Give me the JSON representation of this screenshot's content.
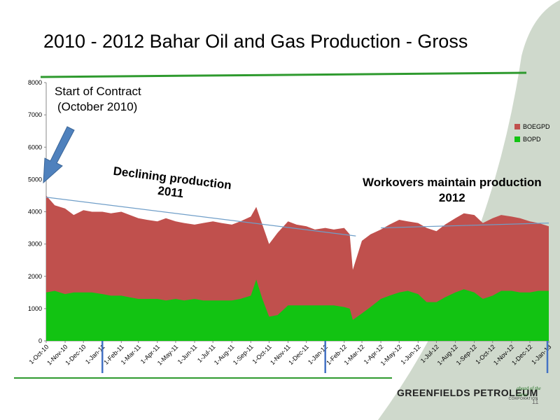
{
  "title": "2010 - 2012 Bahar Oil and Gas Production - Gross",
  "page_number": "11",
  "logo": {
    "name": "GREENFIELDS PETROLEUM",
    "sub": "CORPORATION",
    "tagline": "ahead of the curve"
  },
  "annotations": {
    "contract_line1": "Start of Contract",
    "contract_line2": "(October 2010)",
    "declining_line1": "Declining production",
    "declining_line2": "2011",
    "workovers_line1": "Workovers  maintain production",
    "workovers_line2": "2012"
  },
  "colors": {
    "boegpd": "#c0504d",
    "bopd": "#12c312",
    "trend": "#6f9ec8",
    "arrow": "#4f81bd",
    "marker": "#4472c4",
    "curve": "#cfd9cc",
    "rule": "#2e9a2e"
  },
  "chart_data": {
    "type": "area",
    "ylim": [
      0,
      8000
    ],
    "yticks": [
      0,
      1000,
      2000,
      3000,
      4000,
      5000,
      6000,
      7000,
      8000
    ],
    "x_ticklabels": [
      "1-Oct-10",
      "1-Nov-10",
      "1-Dec-10",
      "1-Jan-11",
      "1-Feb-11",
      "1-Mar-11",
      "1-Apr-11",
      "1-May-11",
      "1-Jun-11",
      "1-Jul-11",
      "1-Aug-11",
      "1-Sep-11",
      "1-Oct-11",
      "1-Nov-11",
      "1-Dec-11",
      "1-Jan-12",
      "1-Feb-12",
      "1-Mar-12",
      "1-Apr-12",
      "1-May-12",
      "1-Jun-12",
      "1-Jul-12",
      "1-Aug-12",
      "1-Sep-12",
      "1-Oct-12",
      "1-Nov-12",
      "1-Dec-12",
      "1-Jan-13"
    ],
    "legend": [
      {
        "name": "BOEGPD",
        "color": "#c0504d"
      },
      {
        "name": "BOPD",
        "color": "#12c312"
      }
    ],
    "legend_position": "right",
    "series": [
      {
        "name": "BOEGPD",
        "x": [
          "1-Oct-10",
          "15-Oct-10",
          "1-Nov-10",
          "15-Nov-10",
          "1-Dec-10",
          "15-Dec-10",
          "1-Jan-11",
          "15-Jan-11",
          "1-Feb-11",
          "15-Feb-11",
          "1-Mar-11",
          "15-Mar-11",
          "1-Apr-11",
          "15-Apr-11",
          "1-May-11",
          "15-May-11",
          "1-Jun-11",
          "15-Jun-11",
          "1-Jul-11",
          "15-Jul-11",
          "1-Aug-11",
          "15-Aug-11",
          "1-Sep-11",
          "10-Sep-11",
          "20-Sep-11",
          "1-Oct-11",
          "15-Oct-11",
          "1-Nov-11",
          "15-Nov-11",
          "1-Dec-11",
          "15-Dec-11",
          "1-Jan-12",
          "15-Jan-12",
          "1-Feb-12",
          "10-Feb-12",
          "15-Feb-12",
          "1-Mar-12",
          "15-Mar-12",
          "1-Apr-12",
          "15-Apr-12",
          "1-May-12",
          "15-May-12",
          "1-Jun-12",
          "15-Jun-12",
          "1-Jul-12",
          "15-Jul-12",
          "1-Aug-12",
          "15-Aug-12",
          "1-Sep-12",
          "15-Sep-12",
          "1-Oct-12",
          "15-Oct-12",
          "1-Nov-12",
          "15-Nov-12",
          "1-Dec-12",
          "15-Dec-12",
          "1-Jan-13"
        ],
        "values": [
          4500,
          4200,
          4100,
          3900,
          4050,
          4000,
          4000,
          3950,
          4000,
          3900,
          3800,
          3750,
          3700,
          3800,
          3700,
          3650,
          3600,
          3650,
          3700,
          3650,
          3600,
          3700,
          3850,
          4150,
          3600,
          3000,
          3350,
          3700,
          3600,
          3550,
          3450,
          3500,
          3450,
          3500,
          3300,
          2200,
          3100,
          3300,
          3450,
          3600,
          3750,
          3700,
          3650,
          3500,
          3400,
          3600,
          3800,
          3950,
          3900,
          3650,
          3800,
          3900,
          3850,
          3800,
          3700,
          3650,
          3550
        ]
      },
      {
        "name": "BOPD",
        "x": [
          "1-Oct-10",
          "15-Oct-10",
          "1-Nov-10",
          "15-Nov-10",
          "1-Dec-10",
          "15-Dec-10",
          "1-Jan-11",
          "15-Jan-11",
          "1-Feb-11",
          "15-Feb-11",
          "1-Mar-11",
          "15-Mar-11",
          "1-Apr-11",
          "15-Apr-11",
          "1-May-11",
          "15-May-11",
          "1-Jun-11",
          "15-Jun-11",
          "1-Jul-11",
          "15-Jul-11",
          "1-Aug-11",
          "15-Aug-11",
          "1-Sep-11",
          "10-Sep-11",
          "20-Sep-11",
          "1-Oct-11",
          "15-Oct-11",
          "1-Nov-11",
          "15-Nov-11",
          "1-Dec-11",
          "15-Dec-11",
          "1-Jan-12",
          "15-Jan-12",
          "1-Feb-12",
          "10-Feb-12",
          "15-Feb-12",
          "1-Mar-12",
          "15-Mar-12",
          "1-Apr-12",
          "15-Apr-12",
          "1-May-12",
          "15-May-12",
          "1-Jun-12",
          "15-Jun-12",
          "1-Jul-12",
          "15-Jul-12",
          "1-Aug-12",
          "15-Aug-12",
          "1-Sep-12",
          "15-Sep-12",
          "1-Oct-12",
          "15-Oct-12",
          "1-Nov-12",
          "15-Nov-12",
          "1-Dec-12",
          "15-Dec-12",
          "1-Jan-13"
        ],
        "values": [
          1500,
          1550,
          1450,
          1500,
          1500,
          1500,
          1450,
          1400,
          1400,
          1350,
          1300,
          1300,
          1300,
          1250,
          1300,
          1250,
          1300,
          1250,
          1250,
          1250,
          1250,
          1300,
          1400,
          1900,
          1300,
          750,
          800,
          1100,
          1100,
          1100,
          1100,
          1100,
          1100,
          1050,
          1000,
          650,
          850,
          1050,
          1300,
          1400,
          1500,
          1550,
          1450,
          1200,
          1200,
          1350,
          1500,
          1600,
          1500,
          1300,
          1400,
          1550,
          1550,
          1500,
          1500,
          1550,
          1550
        ]
      }
    ],
    "trend_lines": [
      {
        "from": {
          "x": "1-Oct-10",
          "y": 4450
        },
        "to": {
          "x": "20-Feb-12",
          "y": 3250
        }
      },
      {
        "from": {
          "x": "1-Apr-12",
          "y": 3500
        },
        "to": {
          "x": "1-Jan-13",
          "y": 3650
        }
      }
    ],
    "year_markers": [
      "1-Jan-11",
      "1-Jan-12",
      "1-Jan-13"
    ]
  }
}
